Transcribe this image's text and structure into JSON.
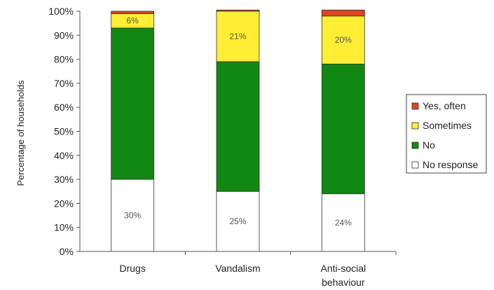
{
  "chart_data": {
    "type": "bar",
    "stacked": true,
    "ylabel": "Percentage of households",
    "xlabel": "",
    "ylim": [
      0,
      100
    ],
    "yticks": [
      "0%",
      "10%",
      "20%",
      "30%",
      "40%",
      "50%",
      "60%",
      "70%",
      "80%",
      "90%",
      "100%"
    ],
    "categories": [
      "Drugs",
      "Vandalism",
      "Anti-social behaviour"
    ],
    "series": [
      {
        "name": "No response",
        "color": "#ffffff",
        "values": [
          30,
          25,
          24
        ],
        "labels": [
          "30%",
          "25%",
          "24%"
        ]
      },
      {
        "name": "No",
        "color": "#118811",
        "values": [
          63,
          54,
          54
        ],
        "labels": [
          "",
          "",
          ""
        ]
      },
      {
        "name": "Sometimes",
        "color": "#ffee33",
        "values": [
          6,
          21,
          20
        ],
        "labels": [
          "6%",
          "21%",
          "20%"
        ]
      },
      {
        "name": "Yes, often",
        "color": "#dd4422",
        "values": [
          1,
          0.5,
          2.5
        ],
        "labels": [
          "",
          "",
          ""
        ]
      }
    ],
    "legend": {
      "placement": "right",
      "order": [
        "Yes, often",
        "Sometimes",
        "No",
        "No response"
      ]
    },
    "grid": false
  }
}
